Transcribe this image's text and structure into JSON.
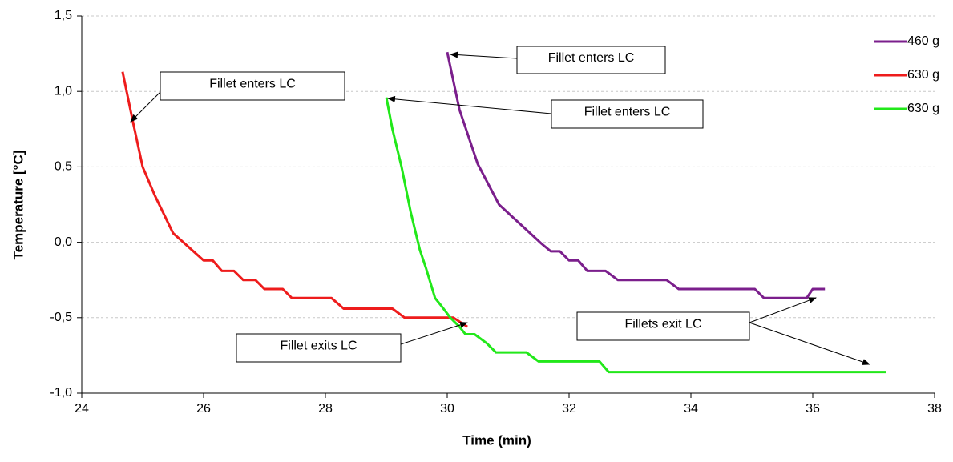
{
  "chart_data": {
    "type": "line",
    "x_label": "Time (min)",
    "y_label": "Temperature [°C]",
    "xlim": [
      24,
      38
    ],
    "xticks": [
      24,
      26,
      28,
      30,
      32,
      34,
      36,
      38
    ],
    "ylim": [
      -1.0,
      1.5
    ],
    "yticks": [
      {
        "value": -1.0,
        "label": "-1,0"
      },
      {
        "value": -0.5,
        "label": "-0,5"
      },
      {
        "value": 0.0,
        "label": "0,0"
      },
      {
        "value": 0.5,
        "label": "0,5"
      },
      {
        "value": 1.0,
        "label": "1,0"
      },
      {
        "value": 1.5,
        "label": "1,5"
      }
    ],
    "grid": true,
    "legend": "top-right",
    "series": [
      {
        "name": "460 g",
        "color": "#7b1f8c",
        "x": [
          30.0,
          30.2,
          30.35,
          30.5,
          30.85,
          31.2,
          31.55,
          31.7,
          31.85,
          32.0,
          32.15,
          32.3,
          32.6,
          32.8,
          33.6,
          33.8,
          35.05,
          35.2,
          35.9,
          36.0,
          36.2
        ],
        "values": [
          1.26,
          0.88,
          0.7,
          0.52,
          0.25,
          0.12,
          -0.01,
          -0.06,
          -0.06,
          -0.12,
          -0.12,
          -0.19,
          -0.19,
          -0.25,
          -0.25,
          -0.31,
          -0.31,
          -0.37,
          -0.37,
          -0.31,
          -0.31
        ]
      },
      {
        "name": "630 g",
        "color": "#ee1c1c",
        "x": [
          24.67,
          24.85,
          25.0,
          25.2,
          25.5,
          26.0,
          26.15,
          26.3,
          26.5,
          26.65,
          26.85,
          27.0,
          27.3,
          27.45,
          28.1,
          28.3,
          29.1,
          29.3,
          30.1,
          30.33
        ],
        "values": [
          1.13,
          0.78,
          0.5,
          0.31,
          0.06,
          -0.12,
          -0.12,
          -0.19,
          -0.19,
          -0.25,
          -0.25,
          -0.31,
          -0.31,
          -0.37,
          -0.37,
          -0.44,
          -0.44,
          -0.5,
          -0.5,
          -0.56
        ]
      },
      {
        "name": "630 g",
        "color": "#22e81a",
        "x": [
          29.0,
          29.1,
          29.25,
          29.4,
          29.55,
          29.65,
          29.8,
          29.9,
          30.05,
          30.2,
          30.3,
          30.45,
          30.65,
          30.8,
          31.3,
          31.5,
          32.5,
          32.65,
          37.2
        ],
        "values": [
          0.96,
          0.75,
          0.5,
          0.2,
          -0.05,
          -0.17,
          -0.37,
          -0.42,
          -0.5,
          -0.56,
          -0.61,
          -0.61,
          -0.67,
          -0.73,
          -0.73,
          -0.79,
          -0.79,
          -0.86,
          -0.86
        ]
      }
    ],
    "annotations": [
      "Fillet enters LC",
      "Fillet enters LC",
      "Fillet enters LC",
      "Fillet exits LC",
      "Fillets exit LC"
    ]
  }
}
